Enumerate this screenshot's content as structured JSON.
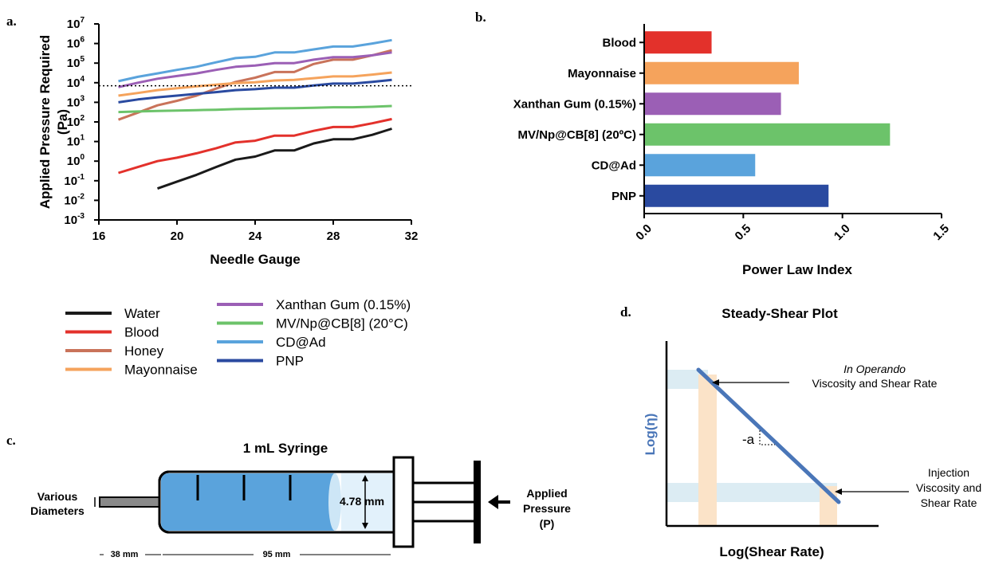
{
  "panels": {
    "a": "a.",
    "b": "b.",
    "c": "c.",
    "d": "d."
  },
  "chart_data": [
    {
      "type": "line",
      "xlabel": "Needle Gauge",
      "ylabel": "Applied Pressure Required",
      "ylabel_unit": "(Pa)",
      "ylog": true,
      "xlim": [
        16,
        32
      ],
      "xticks": [
        "16",
        "20",
        "24",
        "28",
        "32"
      ],
      "ylim_exp": [
        -3,
        7
      ],
      "ytick_exponents": [
        "-3",
        "-2",
        "-1",
        "0",
        "1",
        "2",
        "3",
        "4",
        "5",
        "6",
        "7"
      ],
      "reference_line_y": 7000,
      "legend_placement": "below",
      "series": [
        {
          "name": "Water",
          "color": "#1a1a1a",
          "x": [
            19,
            20,
            21,
            22,
            23,
            24,
            25,
            26,
            27,
            28,
            29,
            30,
            31
          ],
          "y": [
            0.04,
            0.09,
            0.2,
            0.5,
            1.2,
            1.7,
            3.5,
            3.5,
            8,
            13,
            13,
            22,
            45
          ]
        },
        {
          "name": "Blood",
          "color": "#e3312b",
          "x": [
            17,
            18,
            19,
            20,
            21,
            22,
            23,
            24,
            25,
            26,
            27,
            28,
            29,
            30,
            31
          ],
          "y": [
            0.25,
            0.5,
            1,
            1.5,
            2.5,
            4.5,
            9,
            11,
            20,
            20,
            35,
            55,
            55,
            85,
            140
          ]
        },
        {
          "name": "Honey",
          "color": "#c9735a",
          "x": [
            17,
            18,
            19,
            20,
            21,
            22,
            23,
            24,
            25,
            26,
            27,
            28,
            29,
            30,
            31
          ],
          "y": [
            130,
            300,
            700,
            1200,
            2200,
            5000,
            11000,
            18000,
            35000,
            35000,
            90000,
            150000,
            150000,
            250000,
            450000
          ]
        },
        {
          "name": "Mayonnaise",
          "color": "#f5a35c",
          "x": [
            17,
            18,
            19,
            20,
            21,
            22,
            23,
            24,
            25,
            26,
            27,
            28,
            29,
            30,
            31
          ],
          "y": [
            2200,
            3000,
            4200,
            5200,
            6500,
            8000,
            9500,
            10500,
            13000,
            14000,
            17000,
            21000,
            21000,
            26000,
            33000
          ]
        },
        {
          "name": "Xanthan Gum (0.15%)",
          "color": "#9b5fb5",
          "x": [
            17,
            18,
            19,
            20,
            21,
            22,
            23,
            24,
            25,
            26,
            27,
            28,
            29,
            30,
            31
          ],
          "y": [
            6000,
            10000,
            16000,
            22000,
            30000,
            45000,
            65000,
            75000,
            100000,
            100000,
            150000,
            200000,
            200000,
            250000,
            350000
          ]
        },
        {
          "name": "MV/Np@CB[8] (20°C)",
          "color": "#6cc36a",
          "x": [
            17,
            18,
            19,
            20,
            21,
            22,
            23,
            24,
            25,
            26,
            27,
            28,
            29,
            30,
            31
          ],
          "y": [
            320,
            340,
            360,
            380,
            400,
            420,
            450,
            470,
            490,
            500,
            530,
            560,
            560,
            590,
            650
          ]
        },
        {
          "name": "CD@Ad",
          "color": "#5aa3dc",
          "x": [
            17,
            18,
            19,
            20,
            21,
            22,
            23,
            24,
            25,
            26,
            27,
            28,
            29,
            30,
            31
          ],
          "y": [
            12000,
            20000,
            30000,
            45000,
            65000,
            110000,
            180000,
            210000,
            350000,
            350000,
            500000,
            700000,
            700000,
            1000000,
            1500000
          ]
        },
        {
          "name": "PNP",
          "color": "#2a4aa0",
          "x": [
            17,
            18,
            19,
            20,
            21,
            22,
            23,
            24,
            25,
            26,
            27,
            28,
            29,
            30,
            31
          ],
          "y": [
            1000,
            1400,
            1800,
            2200,
            2700,
            3300,
            4200,
            4700,
            5600,
            5600,
            7200,
            9000,
            9000,
            11000,
            14000
          ]
        }
      ]
    },
    {
      "type": "bar",
      "orientation": "horizontal",
      "xlabel": "Power Law Index",
      "xlim": [
        0,
        1.5
      ],
      "xticks": [
        "0.0",
        "0.5",
        "1.0",
        "1.5"
      ],
      "categories": [
        "Blood",
        "Mayonnaise",
        "Xanthan Gum (0.15%)",
        "MV/Np@CB[8] (20ºC)",
        "CD@Ad",
        "PNP"
      ],
      "values": [
        0.34,
        0.78,
        0.69,
        1.24,
        0.56,
        0.93
      ],
      "colors": [
        "#e3312b",
        "#f5a35c",
        "#9b5fb5",
        "#6cc36a",
        "#5aa3dc",
        "#2a4aa0"
      ]
    }
  ],
  "syringe": {
    "title": "1 mL Syringe",
    "diameter_label_1": "Various",
    "diameter_label_2": "Diameters",
    "inner_diameter": "4.78 mm",
    "pressure_label_1": "Applied",
    "pressure_label_2": "Pressure",
    "pressure_label_3": "(P)",
    "needle_length": "38 mm",
    "barrel_length": "95 mm"
  },
  "shear_plot": {
    "title": "Steady-Shear Plot",
    "xlabel": "Log(Shear Rate)",
    "ylabel": "Log(η)",
    "slope_label": "-a",
    "annotation_top_1": "In Operando",
    "annotation_top_2": "Viscosity and Shear Rate",
    "annotation_bottom_1": "Injection",
    "annotation_bottom_2": "Viscosity and",
    "annotation_bottom_3": "Shear Rate"
  }
}
